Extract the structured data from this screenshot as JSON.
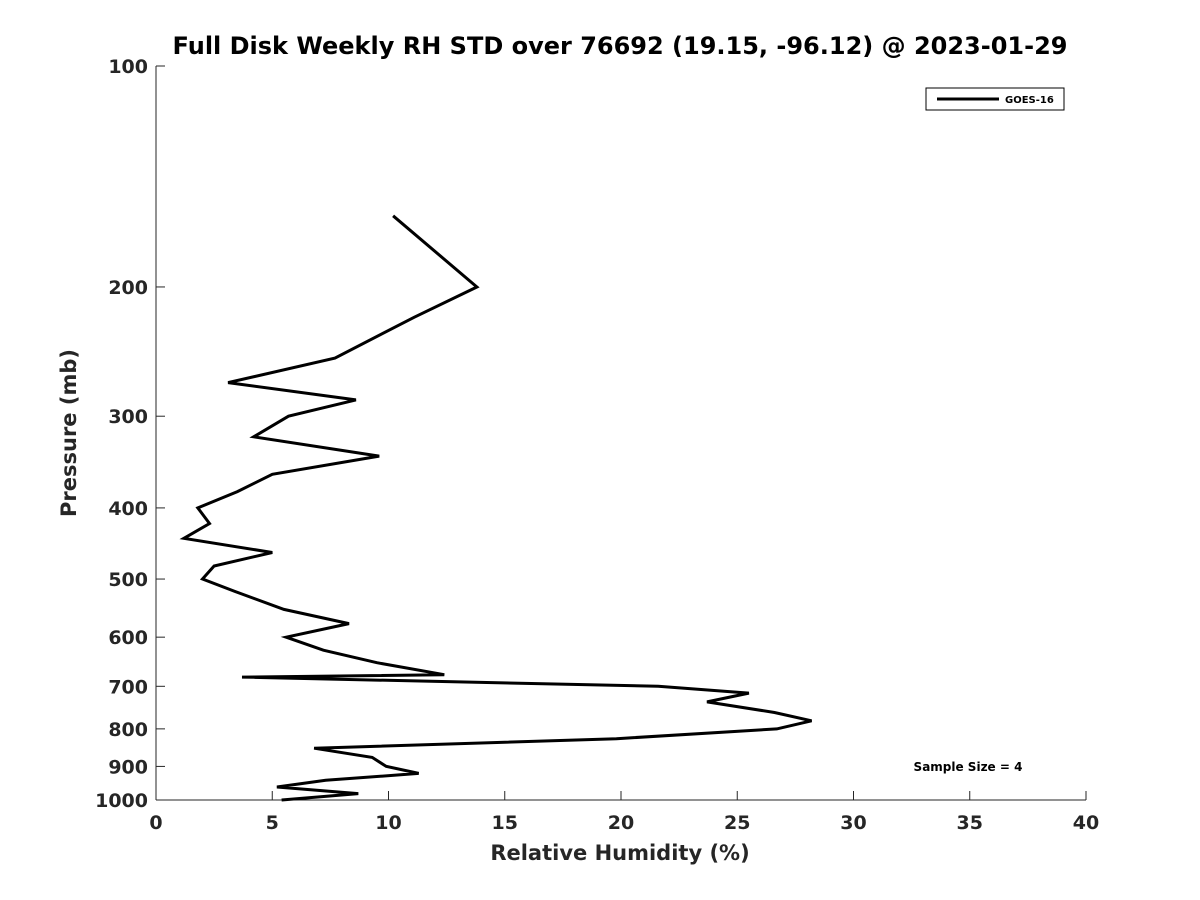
{
  "chart_data": {
    "type": "line",
    "title": "Full Disk Weekly RH STD over 76692 (19.15, -96.12) @ 2023-01-29",
    "xlabel": "Relative Humidity (%)",
    "ylabel": "Pressure (mb)",
    "xlim": [
      0,
      40
    ],
    "ylim": [
      100,
      1000
    ],
    "yscale": "log",
    "y_reversed": true,
    "xticks": [
      0,
      5,
      10,
      15,
      20,
      25,
      30,
      35,
      40
    ],
    "yticks": [
      100,
      200,
      300,
      400,
      500,
      600,
      700,
      800,
      900,
      1000
    ],
    "grid": false,
    "legend": {
      "position": "top-right",
      "entries": [
        "GOES-16"
      ]
    },
    "annotation": "Sample Size = 4",
    "series": [
      {
        "name": "GOES-16",
        "color": "#000000",
        "x": [
          10.2,
          13.8,
          11.1,
          7.7,
          3.1,
          8.6,
          5.7,
          4.2,
          9.6,
          5.0,
          3.5,
          1.8,
          2.3,
          1.2,
          5.0,
          2.5,
          2.0,
          3.4,
          5.5,
          8.3,
          5.6,
          7.2,
          9.5,
          12.4,
          3.7,
          21.6,
          25.5,
          23.7,
          26.6,
          28.2,
          26.7,
          19.8,
          6.8,
          9.3,
          9.9,
          11.3,
          7.3,
          5.2,
          8.7,
          5.4
        ],
        "y": [
          160,
          200,
          220,
          250,
          270,
          285,
          300,
          320,
          340,
          360,
          380,
          400,
          420,
          440,
          460,
          480,
          500,
          520,
          550,
          575,
          600,
          625,
          650,
          675,
          680,
          700,
          715,
          735,
          760,
          780,
          800,
          825,
          850,
          875,
          900,
          920,
          940,
          960,
          980,
          1000
        ]
      }
    ]
  }
}
